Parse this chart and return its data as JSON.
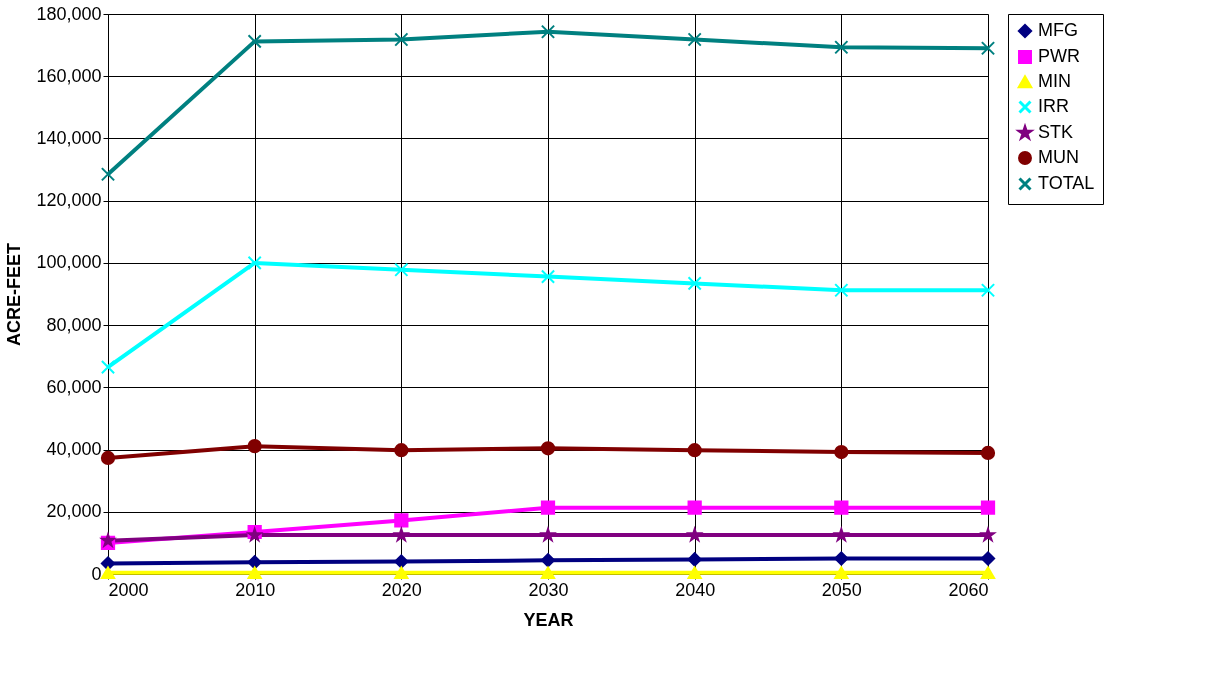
{
  "chart_data": {
    "type": "line",
    "xlabel": "YEAR",
    "ylabel": "ACRE-FEET",
    "x": [
      2000,
      2010,
      2020,
      2030,
      2040,
      2050,
      2060
    ],
    "xlim": [
      2000,
      2060
    ],
    "xticks": [
      2000,
      2010,
      2020,
      2030,
      2040,
      2050,
      2060
    ],
    "ylim": [
      0,
      180000
    ],
    "yticks": [
      {
        "value": 0,
        "label": "0"
      },
      {
        "value": 20000,
        "label": "20,000"
      },
      {
        "value": 40000,
        "label": "40,000"
      },
      {
        "value": 60000,
        "label": "60,000"
      },
      {
        "value": 80000,
        "label": "80,000"
      },
      {
        "value": 100000,
        "label": "100,000"
      },
      {
        "value": 120000,
        "label": "120,000"
      },
      {
        "value": 140000,
        "label": "140,000"
      },
      {
        "value": 160000,
        "label": "160,000"
      },
      {
        "value": 180000,
        "label": "180,000"
      }
    ],
    "grid": true,
    "legend": "right",
    "line_style": "solid",
    "series": [
      {
        "name": "MFG",
        "color": "#000080",
        "marker": "diamond",
        "values": [
          3400,
          3800,
          4000,
          4400,
          4700,
          5000,
          5000
        ]
      },
      {
        "name": "PWR",
        "color": "#ff00ff",
        "marker": "square",
        "values": [
          10000,
          13500,
          17200,
          21300,
          21300,
          21300,
          21300
        ]
      },
      {
        "name": "MIN",
        "color": "#ffff00",
        "marker": "triangle",
        "values": [
          400,
          400,
          400,
          400,
          400,
          400,
          400
        ]
      },
      {
        "name": "IRR",
        "color": "#00ffff",
        "marker": "cross",
        "values": [
          66500,
          100000,
          97800,
          95600,
          93400,
          91200,
          91200
        ]
      },
      {
        "name": "STK",
        "color": "#800080",
        "marker": "star",
        "values": [
          10700,
          12500,
          12500,
          12500,
          12500,
          12500,
          12500
        ]
      },
      {
        "name": "MUN",
        "color": "#800000",
        "marker": "circle",
        "values": [
          37300,
          41100,
          39800,
          40400,
          39800,
          39200,
          38900
        ]
      },
      {
        "name": "TOTAL",
        "color": "#008080",
        "marker": "cross",
        "values": [
          128500,
          171200,
          171800,
          174300,
          171800,
          169300,
          169000
        ]
      }
    ]
  }
}
